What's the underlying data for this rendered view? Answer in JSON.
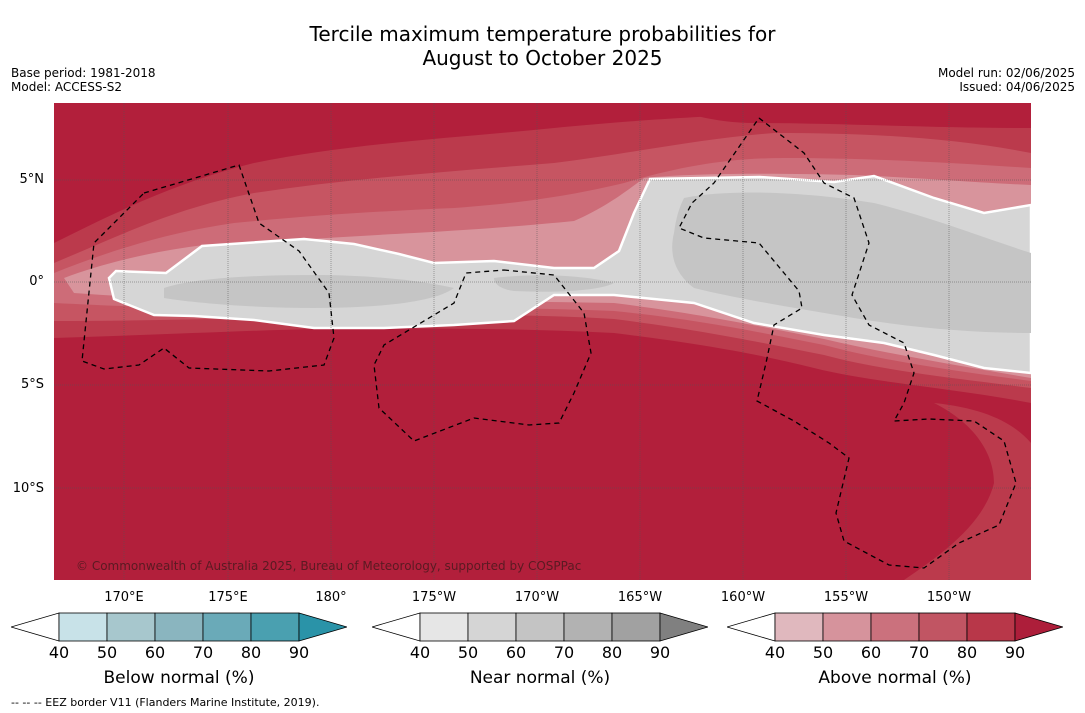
{
  "title_line1": "Tercile maximum temperature probabilities for",
  "title_line2": "August to October 2025",
  "base_period": "Base period: 1981-2018",
  "model": "Model: ACCESS-S2",
  "model_run": "Model run: 02/06/2025",
  "issued": "Issued: 04/06/2025",
  "copyright": "© Commonwealth of Australia 2025, Bureau of Meteorology, supported by COSPPac",
  "lat_labels": [
    "5°N",
    "0°",
    "5°S",
    "10°S"
  ],
  "lon_labels": [
    "170°E",
    "175°E",
    "180°",
    "175°W",
    "170°W",
    "165°W",
    "160°W",
    "155°W",
    "150°W"
  ],
  "colorbars": [
    {
      "title": "Below normal (%)",
      "ticks": [
        "40",
        "50",
        "60",
        "70",
        "80",
        "90"
      ],
      "colors": [
        "#ffffff",
        "#c8e2e8",
        "#a7c7cd",
        "#8ab5bf",
        "#6aaab8",
        "#4aa0b0",
        "#2a93a8"
      ]
    },
    {
      "title": "Near normal (%)",
      "ticks": [
        "40",
        "50",
        "60",
        "70",
        "80",
        "90"
      ],
      "colors": [
        "#ffffff",
        "#e6e6e6",
        "#d5d5d5",
        "#c4c4c4",
        "#b2b2b2",
        "#a1a1a1",
        "#808080"
      ]
    },
    {
      "title": "Above normal (%)",
      "ticks": [
        "40",
        "50",
        "60",
        "70",
        "80",
        "90"
      ],
      "colors": [
        "#ffffff",
        "#e0b8be",
        "#d6939c",
        "#cb717d",
        "#c15563",
        "#b83749",
        "#ad1e3a"
      ]
    }
  ],
  "footnote": "--  --  -- EEZ border V11 (Flanders Marine Institute, 2019).",
  "map_colors": {
    "above_90": "#b21f3b",
    "above_80": "#bb3a4c",
    "above_70": "#c65562",
    "above_60": "#cd6c78",
    "above_50": "#d8949c",
    "near_50": "#d6d6d6",
    "near_60": "#c5c5c5"
  }
}
